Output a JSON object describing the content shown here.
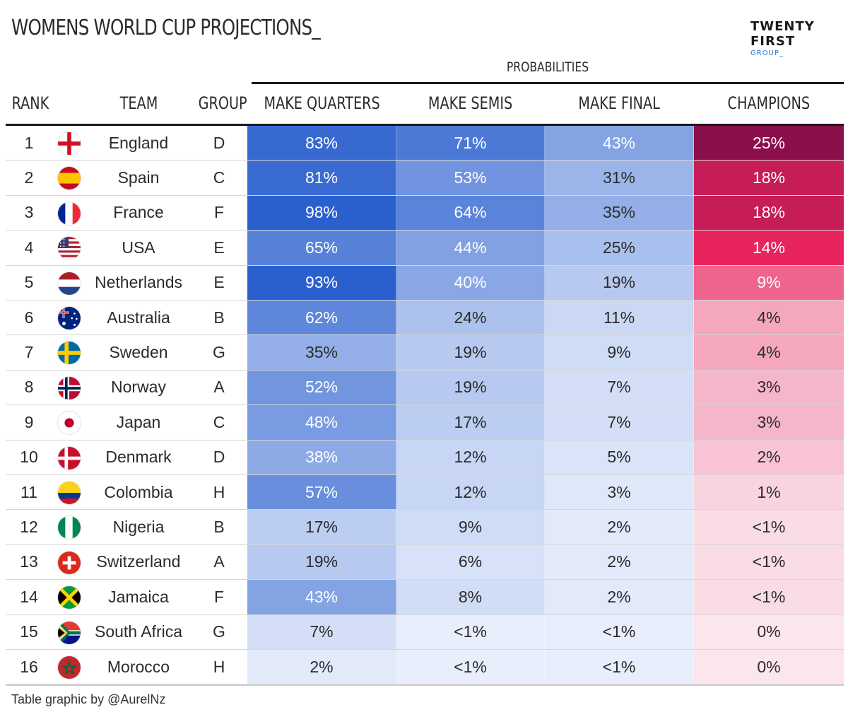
{
  "title": "WOMENS WORLD CUP PROJECTIONS_",
  "logo": {
    "line1": "TWENTY",
    "line2": "FIRST",
    "line3": "GROUP_"
  },
  "probabilities_label": "PROBABILITIES",
  "headers": {
    "rank": "RANK",
    "team": "TEAM",
    "group": "GROUP",
    "quarters": "MAKE QUARTERS",
    "semis": "MAKE SEMIS",
    "final": "MAKE FINAL",
    "champions": "CHAMPIONS"
  },
  "footer": "Table graphic by @AurelNz",
  "colors": {
    "blue_scale": "#2260d8",
    "pink_scale": "#e8245e",
    "champion_top": "#8b0f4a"
  },
  "chart_data": {
    "type": "table",
    "columns": [
      "RANK",
      "TEAM",
      "GROUP",
      "MAKE QUARTERS",
      "MAKE SEMIS",
      "MAKE FINAL",
      "CHAMPIONS"
    ],
    "rows": [
      {
        "rank": 1,
        "team": "England",
        "flag": "england-flag",
        "group": "D",
        "quarters": "83%",
        "semis": "71%",
        "final": "43%",
        "champions": "25%"
      },
      {
        "rank": 2,
        "team": "Spain",
        "flag": "spain-flag",
        "group": "C",
        "quarters": "81%",
        "semis": "53%",
        "final": "31%",
        "champions": "18%"
      },
      {
        "rank": 3,
        "team": "France",
        "flag": "france-flag",
        "group": "F",
        "quarters": "98%",
        "semis": "64%",
        "final": "35%",
        "champions": "18%"
      },
      {
        "rank": 4,
        "team": "USA",
        "flag": "usa-flag",
        "group": "E",
        "quarters": "65%",
        "semis": "44%",
        "final": "25%",
        "champions": "14%"
      },
      {
        "rank": 5,
        "team": "Netherlands",
        "flag": "netherlands-flag",
        "group": "E",
        "quarters": "93%",
        "semis": "40%",
        "final": "19%",
        "champions": "9%"
      },
      {
        "rank": 6,
        "team": "Australia",
        "flag": "australia-flag",
        "group": "B",
        "quarters": "62%",
        "semis": "24%",
        "final": "11%",
        "champions": "4%"
      },
      {
        "rank": 7,
        "team": "Sweden",
        "flag": "sweden-flag",
        "group": "G",
        "quarters": "35%",
        "semis": "19%",
        "final": "9%",
        "champions": "4%"
      },
      {
        "rank": 8,
        "team": "Norway",
        "flag": "norway-flag",
        "group": "A",
        "quarters": "52%",
        "semis": "19%",
        "final": "7%",
        "champions": "3%"
      },
      {
        "rank": 9,
        "team": "Japan",
        "flag": "japan-flag",
        "group": "C",
        "quarters": "48%",
        "semis": "17%",
        "final": "7%",
        "champions": "3%"
      },
      {
        "rank": 10,
        "team": "Denmark",
        "flag": "denmark-flag",
        "group": "D",
        "quarters": "38%",
        "semis": "12%",
        "final": "5%",
        "champions": "2%"
      },
      {
        "rank": 11,
        "team": "Colombia",
        "flag": "colombia-flag",
        "group": "H",
        "quarters": "57%",
        "semis": "12%",
        "final": "3%",
        "champions": "1%"
      },
      {
        "rank": 12,
        "team": "Nigeria",
        "flag": "nigeria-flag",
        "group": "B",
        "quarters": "17%",
        "semis": "9%",
        "final": "2%",
        "champions": "<1%"
      },
      {
        "rank": 13,
        "team": "Switzerland",
        "flag": "switzerland-flag",
        "group": "A",
        "quarters": "19%",
        "semis": "6%",
        "final": "2%",
        "champions": "<1%"
      },
      {
        "rank": 14,
        "team": "Jamaica",
        "flag": "jamaica-flag",
        "group": "F",
        "quarters": "43%",
        "semis": "8%",
        "final": "2%",
        "champions": "<1%"
      },
      {
        "rank": 15,
        "team": "South Africa",
        "flag": "south-africa-flag",
        "group": "G",
        "quarters": "7%",
        "semis": "<1%",
        "final": "<1%",
        "champions": "0%"
      },
      {
        "rank": 16,
        "team": "Morocco",
        "flag": "morocco-flag",
        "group": "H",
        "quarters": "2%",
        "semis": "<1%",
        "final": "<1%",
        "champions": "0%"
      }
    ]
  }
}
